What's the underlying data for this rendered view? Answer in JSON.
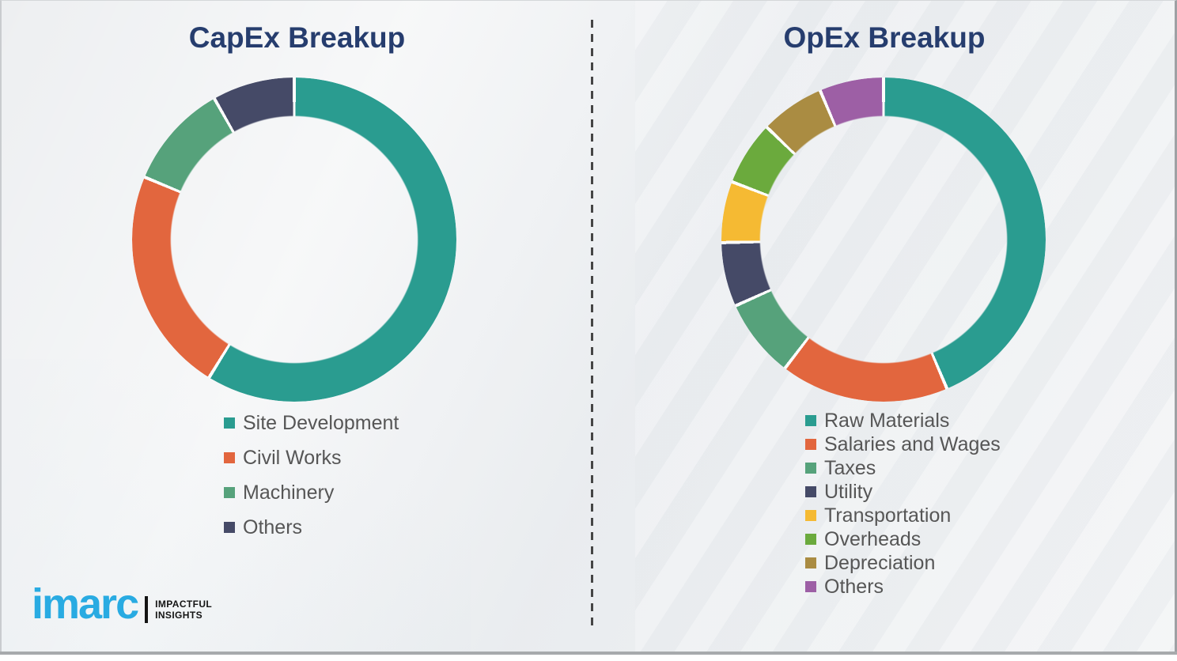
{
  "page": {
    "background_color": "#edeff1",
    "divider_color": "#454545",
    "bottom_bar_color": "#a7aaac",
    "title_color": "#263d6e",
    "legend_text_color": "#565656"
  },
  "chart_data": [
    {
      "type": "pie",
      "subtype": "donut",
      "title": "CapEx Breakup",
      "labels": [
        "Site Development",
        "Civil Works",
        "Machinery",
        "Others"
      ],
      "values": [
        58.8,
        22.5,
        10.5,
        8.2
      ],
      "unit": "percent_estimated_from_arc_angles",
      "colors": [
        "#2a9c90",
        "#e2663e",
        "#56a27b",
        "#454a67"
      ],
      "start_angle_deg": 0,
      "direction": "clockwise",
      "ring_thickness_fraction": 0.24,
      "segment_separator_color": "#fdfdfd",
      "legend_position": "below-left",
      "data_labels_shown": false
    },
    {
      "type": "pie",
      "subtype": "donut",
      "title": "OpEx Breakup",
      "labels": [
        "Raw Materials",
        "Salaries and Wages",
        "Taxes",
        "Utility",
        "Transportation",
        "Overheads",
        "Depreciation",
        "Others"
      ],
      "values": [
        43.6,
        16.8,
        7.9,
        6.4,
        6.1,
        6.4,
        6.4,
        6.4
      ],
      "unit": "percent_estimated_from_arc_angles",
      "colors": [
        "#2a9c90",
        "#e2663e",
        "#56a27b",
        "#454a67",
        "#f5ba33",
        "#6baa3d",
        "#aa8c42",
        "#9d5fa5"
      ],
      "start_angle_deg": 0,
      "direction": "clockwise",
      "ring_thickness_fraction": 0.24,
      "segment_separator_color": "#fdfdfd",
      "legend_position": "below-left",
      "data_labels_shown": false
    }
  ],
  "logo": {
    "brand": "imarc",
    "brand_color": "#29abe2",
    "tagline_line1": "IMPACTFUL",
    "tagline_line2": "INSIGHTS"
  }
}
